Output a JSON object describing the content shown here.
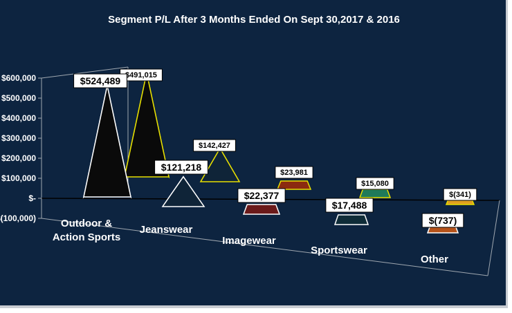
{
  "chart_data": {
    "type": "bar",
    "title": "Segment P/L After 3 Months Ended On Sept 30,2017 & 2016",
    "xlabel": "",
    "ylabel": "",
    "ylim": [
      -100000,
      600000
    ],
    "ytick_labels": [
      "$(100,000)",
      "$-",
      "$100,000",
      "$200,000",
      "$300,000",
      "$400,000",
      "$500,000",
      "$600,000"
    ],
    "categories": [
      "Outdoor & Action Sports",
      "Jeanswear",
      "Imagewear",
      "Sportswear",
      "Other"
    ],
    "category_lines": [
      [
        "Outdoor &",
        "Action Sports"
      ],
      [
        "Jeanswear"
      ],
      [
        "Imagewear"
      ],
      [
        "Sportswear"
      ],
      [
        "Other"
      ]
    ],
    "series": [
      {
        "values": [
          524489,
          121218,
          22377,
          17488,
          -737
        ],
        "data_labels": [
          "$524,489",
          "$121,218",
          "$22,377",
          "$17,488",
          "$(737)"
        ]
      },
      {
        "values": [
          491015,
          142427,
          23981,
          15080,
          -341
        ],
        "data_labels": [
          "$491,015",
          "$142,427",
          "$23,981",
          "$15,080",
          "$(341)"
        ]
      }
    ],
    "colors": {
      "background": "#0d2440",
      "front_fill": [
        "#0a0a0a",
        "#0f2438",
        "#6b1a1a",
        "#0f2c38",
        "#b5531a"
      ],
      "front_edge": [
        "#ffffff",
        "#ffffff",
        "#ffffff",
        "#ffffff",
        "#ffffff"
      ],
      "back_fill": [
        "#0a0a0a",
        "#0f2438",
        "#8b2a10",
        "#1f7a5a",
        "#e0a020"
      ],
      "back_edge": "#e8e000",
      "axis": "#a0a8b0"
    },
    "grid": false,
    "legend": "none"
  }
}
